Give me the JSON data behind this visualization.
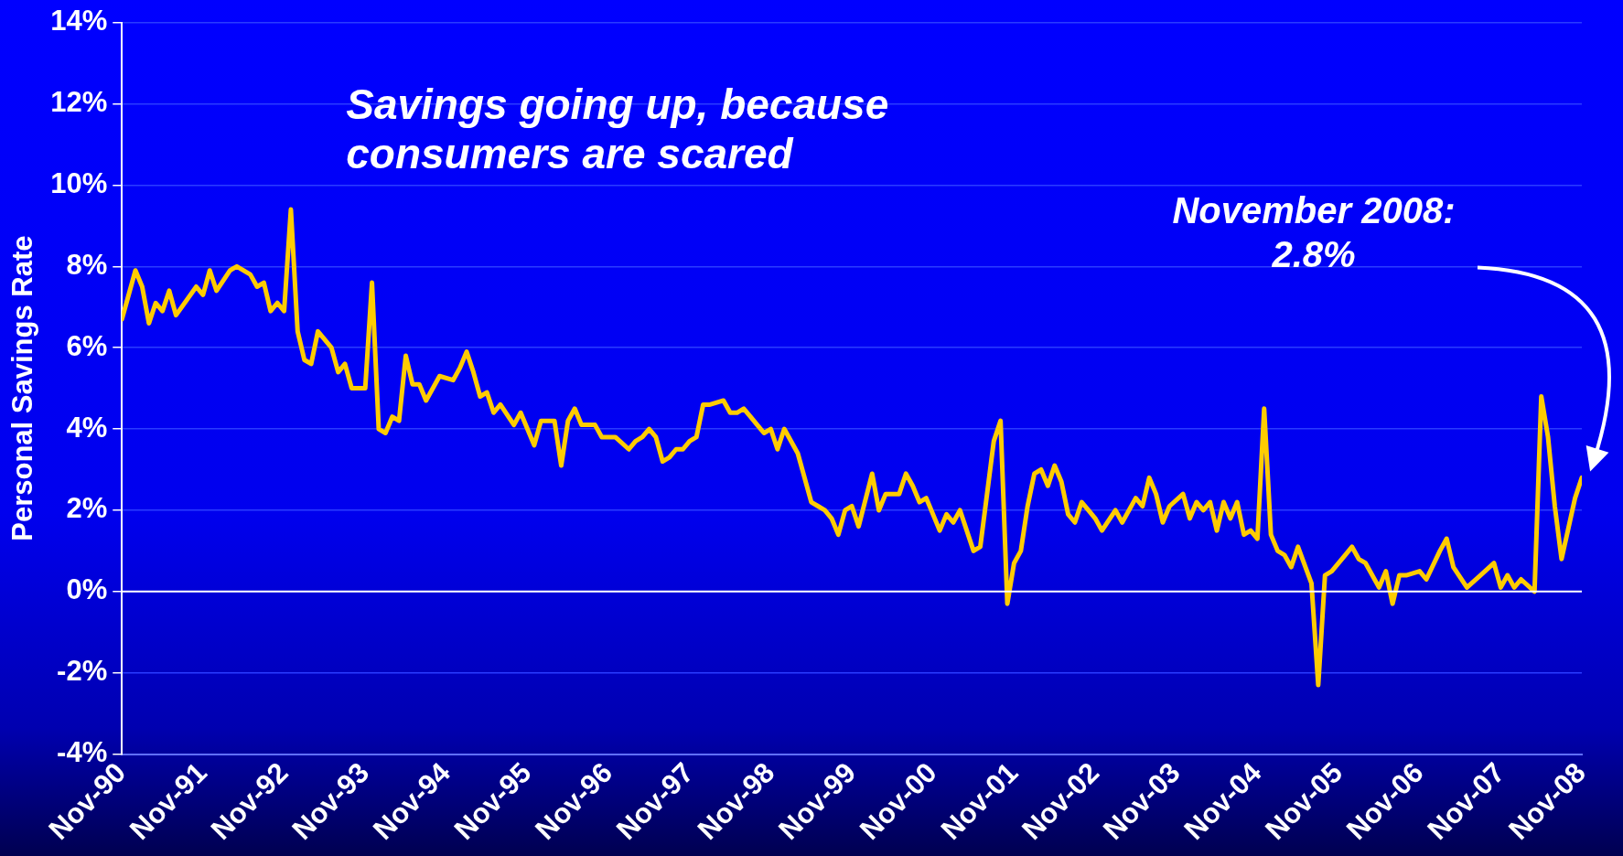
{
  "chart_data": {
    "type": "line",
    "ylabel": "Personal Savings Rate",
    "annotations": [
      "Savings going up, because consumers are scared",
      "November 2008:\n2.8%"
    ],
    "x": [
      "1990-11",
      "1991-01",
      "1991-02",
      "1991-03",
      "1991-04",
      "1991-05",
      "1991-06",
      "1991-07",
      "1991-10",
      "1991-11",
      "1991-12",
      "1992-01",
      "1992-03",
      "1992-04",
      "1992-06",
      "1992-07",
      "1992-08",
      "1992-09",
      "1992-10",
      "1992-11",
      "1992-12",
      "1993-01",
      "1993-02",
      "1993-03",
      "1993-04",
      "1993-06",
      "1993-07",
      "1993-08",
      "1993-09",
      "1993-11",
      "1993-12",
      "1994-01",
      "1994-02",
      "1994-03",
      "1994-04",
      "1994-05",
      "1994-06",
      "1994-07",
      "1994-08",
      "1994-10",
      "1994-12",
      "1995-01",
      "1995-02",
      "1995-03",
      "1995-04",
      "1995-05",
      "1995-06",
      "1995-07",
      "1995-09",
      "1995-10",
      "1995-12",
      "1996-01",
      "1996-03",
      "1996-04",
      "1996-05",
      "1996-06",
      "1996-07",
      "1996-09",
      "1996-10",
      "1996-12",
      "1997-02",
      "1997-03",
      "1997-04",
      "1997-05",
      "1997-06",
      "1997-07",
      "1997-08",
      "1997-09",
      "1997-10",
      "1997-11",
      "1997-12",
      "1998-01",
      "1998-02",
      "1998-04",
      "1998-05",
      "1998-06",
      "1998-07",
      "1998-08",
      "1998-09",
      "1998-10",
      "1998-11",
      "1998-12",
      "1999-01",
      "1999-03",
      "1999-05",
      "1999-06",
      "1999-07",
      "1999-08",
      "1999-09",
      "1999-10",
      "1999-11",
      "1999-12",
      "2000-02",
      "2000-03",
      "2000-04",
      "2000-06",
      "2000-07",
      "2000-08",
      "2000-09",
      "2000-10",
      "2000-12",
      "2001-01",
      "2001-02",
      "2001-03",
      "2001-05",
      "2001-06",
      "2001-08",
      "2001-09",
      "2001-10",
      "2001-11",
      "2001-12",
      "2002-01",
      "2002-02",
      "2002-03",
      "2002-04",
      "2002-05",
      "2002-06",
      "2002-07",
      "2002-08",
      "2002-09",
      "2002-10",
      "2002-11",
      "2002-12",
      "2003-02",
      "2003-03",
      "2003-05",
      "2003-06",
      "2003-07",
      "2003-08",
      "2003-09",
      "2003-10",
      "2003-12",
      "2004-01",
      "2004-02",
      "2004-03",
      "2004-04",
      "2004-05",
      "2004-06",
      "2004-07",
      "2004-08",
      "2004-09",
      "2004-10",
      "2004-11",
      "2004-12",
      "2005-01",
      "2005-02",
      "2005-03",
      "2005-04",
      "2005-05",
      "2005-07",
      "2005-08",
      "2005-09",
      "2005-10",
      "2005-12",
      "2006-01",
      "2006-02",
      "2006-03",
      "2006-05",
      "2006-06",
      "2006-07",
      "2006-08",
      "2006-09",
      "2006-11",
      "2006-12",
      "2007-02",
      "2007-03",
      "2007-04",
      "2007-06",
      "2007-08",
      "2007-10",
      "2007-11",
      "2007-12",
      "2008-01",
      "2008-02",
      "2008-04",
      "2008-05",
      "2008-06",
      "2008-07",
      "2008-08",
      "2008-10",
      "2008-11"
    ],
    "series": [
      {
        "color": "#ffcc00",
        "values": [
          6.7,
          7.9,
          7.5,
          6.6,
          7.1,
          6.9,
          7.4,
          6.8,
          7.5,
          7.3,
          7.9,
          7.4,
          7.9,
          8.0,
          7.8,
          7.5,
          7.6,
          6.9,
          7.1,
          6.9,
          9.4,
          6.4,
          5.7,
          5.6,
          6.4,
          6.0,
          5.4,
          5.6,
          5.0,
          5.0,
          7.6,
          4.0,
          3.9,
          4.3,
          4.2,
          5.8,
          5.1,
          5.1,
          4.7,
          5.3,
          5.2,
          5.5,
          5.9,
          5.4,
          4.8,
          4.9,
          4.4,
          4.6,
          4.1,
          4.4,
          3.6,
          4.2,
          4.2,
          3.1,
          4.2,
          4.5,
          4.1,
          4.1,
          3.8,
          3.8,
          3.5,
          3.7,
          3.8,
          4.0,
          3.8,
          3.2,
          3.3,
          3.5,
          3.5,
          3.7,
          3.8,
          4.6,
          4.6,
          4.7,
          4.4,
          4.4,
          4.5,
          4.3,
          4.1,
          3.9,
          4.0,
          3.5,
          4.0,
          3.4,
          2.2,
          2.1,
          2.0,
          1.8,
          1.4,
          2.0,
          2.1,
          1.6,
          2.9,
          2.0,
          2.4,
          2.4,
          2.9,
          2.6,
          2.2,
          2.3,
          1.5,
          1.9,
          1.7,
          2.0,
          1.0,
          1.1,
          3.7,
          4.2,
          -0.3,
          0.7,
          1.0,
          2.1,
          2.9,
          3.0,
          2.6,
          3.1,
          2.7,
          1.9,
          1.7,
          2.2,
          2.0,
          1.8,
          1.5,
          2.0,
          1.7,
          2.3,
          2.1,
          2.8,
          2.4,
          1.7,
          2.1,
          2.4,
          1.8,
          2.2,
          2.0,
          2.2,
          1.5,
          2.2,
          1.8,
          2.2,
          1.4,
          1.5,
          1.3,
          4.5,
          1.4,
          1.0,
          0.9,
          0.6,
          1.1,
          0.2,
          -2.3,
          0.4,
          0.5,
          0.9,
          1.1,
          0.8,
          0.7,
          0.1,
          0.5,
          -0.3,
          0.4,
          0.4,
          0.5,
          0.3,
          1.0,
          1.3,
          0.6,
          0.1,
          0.4,
          0.7,
          0.1,
          0.4,
          0.1,
          0.3,
          0.0,
          4.8,
          3.8,
          2.1,
          0.8,
          2.3,
          2.8
        ]
      }
    ],
    "xlim": [
      "1990-11",
      "2008-11"
    ],
    "xticks": [
      {
        "value": "1990-11",
        "label": "Nov-90"
      },
      {
        "value": "1991-11",
        "label": "Nov-91"
      },
      {
        "value": "1992-11",
        "label": "Nov-92"
      },
      {
        "value": "1993-11",
        "label": "Nov-93"
      },
      {
        "value": "1994-11",
        "label": "Nov-94"
      },
      {
        "value": "1995-11",
        "label": "Nov-95"
      },
      {
        "value": "1996-11",
        "label": "Nov-96"
      },
      {
        "value": "1997-11",
        "label": "Nov-97"
      },
      {
        "value": "1998-11",
        "label": "Nov-98"
      },
      {
        "value": "1999-11",
        "label": "Nov-99"
      },
      {
        "value": "2000-11",
        "label": "Nov-00"
      },
      {
        "value": "2001-11",
        "label": "Nov-01"
      },
      {
        "value": "2002-11",
        "label": "Nov-02"
      },
      {
        "value": "2003-11",
        "label": "Nov-03"
      },
      {
        "value": "2004-11",
        "label": "Nov-04"
      },
      {
        "value": "2005-11",
        "label": "Nov-05"
      },
      {
        "value": "2006-11",
        "label": "Nov-06"
      },
      {
        "value": "2007-11",
        "label": "Nov-07"
      },
      {
        "value": "2008-11",
        "label": "Nov-08"
      }
    ],
    "ylim": [
      -4,
      14
    ],
    "yticks": [
      {
        "value": -4,
        "label": "-4%"
      },
      {
        "value": -2,
        "label": "-2%"
      },
      {
        "value": 0,
        "label": "0%"
      },
      {
        "value": 2,
        "label": "2%"
      },
      {
        "value": 4,
        "label": "4%"
      },
      {
        "value": 6,
        "label": "6%"
      },
      {
        "value": 8,
        "label": "8%"
      },
      {
        "value": 10,
        "label": "10%"
      },
      {
        "value": 12,
        "label": "12%"
      },
      {
        "value": 14,
        "label": "14%"
      }
    ],
    "grid": "y",
    "ref_lines": [
      {
        "axis": "y",
        "value": 0,
        "color": "#ffffff"
      }
    ],
    "legend": false,
    "marker": "none",
    "line_style": "solid"
  }
}
